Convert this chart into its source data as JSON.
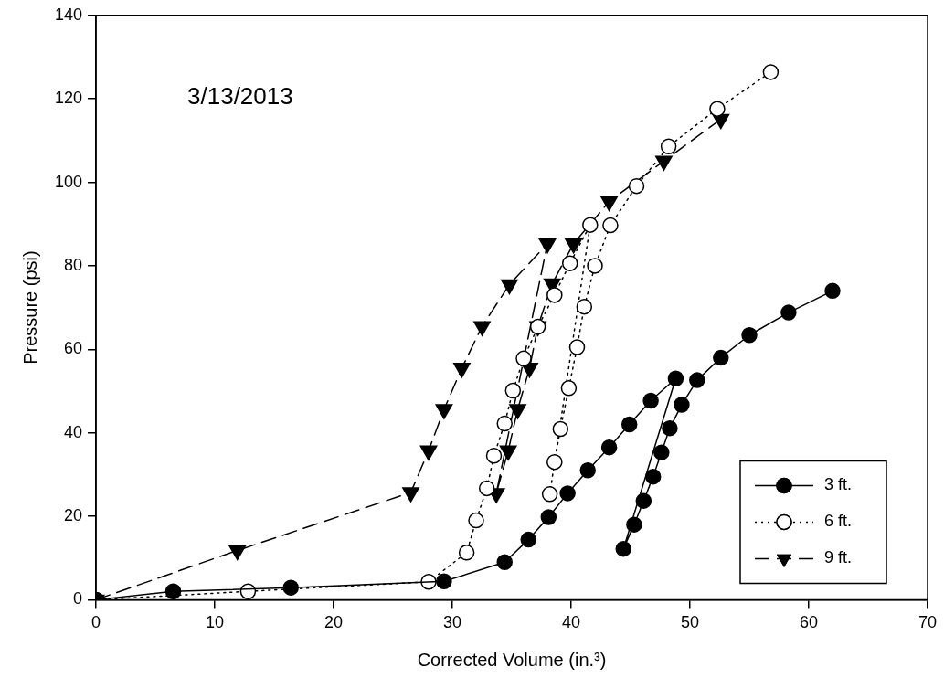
{
  "chart_data": {
    "type": "line",
    "xlabel": "Corrected Volume (in.³)",
    "ylabel": "Pressure (psi)",
    "annotations": [
      "3/13/2013"
    ],
    "xlim": [
      0,
      70
    ],
    "xticks": [
      0,
      10,
      20,
      30,
      40,
      50,
      60,
      70
    ],
    "ylim": [
      0,
      140
    ],
    "yticks": [
      0,
      20,
      40,
      60,
      80,
      100,
      120,
      140
    ],
    "grid": false,
    "legend": "bottom right",
    "series": [
      {
        "name": "3 ft.",
        "color": "#000000",
        "marker": "circle",
        "line_style": "solid",
        "x": [
          0,
          6.5,
          16.4,
          29.3,
          34.4,
          36.4,
          38.1,
          39.7,
          41.4,
          43.2,
          44.9,
          46.7,
          48.8,
          44.4,
          45.3,
          46.1,
          46.9,
          47.6,
          48.3,
          49.3,
          50.6,
          52.6,
          55.0,
          58.3,
          62.0
        ],
        "values": [
          0,
          2.0,
          2.9,
          4.4,
          9.0,
          14.4,
          19.8,
          25.5,
          31.0,
          36.5,
          42.0,
          47.7,
          53.0,
          12.2,
          18.0,
          23.7,
          29.5,
          35.3,
          41.1,
          46.7,
          52.6,
          58.0,
          63.4,
          68.8,
          74.0
        ]
      },
      {
        "name": "6 ft.",
        "color": "#000000",
        "marker": "circle",
        "line_style": "dotted",
        "x": [
          0,
          12.8,
          28.0,
          31.2,
          32.0,
          32.9,
          33.5,
          34.4,
          35.1,
          36.0,
          37.2,
          38.6,
          39.9,
          41.6,
          38.2,
          38.6,
          39.1,
          39.8,
          40.5,
          41.1,
          42.0,
          43.3,
          45.5,
          48.2,
          52.3,
          56.8
        ],
        "values": [
          0,
          2.0,
          4.3,
          11.3,
          19.0,
          26.7,
          34.5,
          42.2,
          50.1,
          57.8,
          65.4,
          73.0,
          80.6,
          89.8,
          25.3,
          33.0,
          40.9,
          50.7,
          60.5,
          70.2,
          80.0,
          89.7,
          99.1,
          108.6,
          117.6,
          126.4
        ]
      },
      {
        "name": "9 ft.",
        "color": "#000000",
        "marker": "triangle",
        "line_style": "dashed",
        "x": [
          0,
          11.9,
          26.5,
          28.0,
          29.3,
          30.8,
          32.5,
          34.8,
          38.0,
          33.7,
          34.7,
          35.5,
          36.5,
          37.2,
          38.4,
          40.2,
          43.2,
          47.8,
          52.6
        ],
        "values": [
          0,
          11.8,
          25.7,
          35.7,
          45.6,
          55.5,
          65.5,
          75.5,
          85.3,
          25.5,
          35.7,
          45.6,
          55.5,
          65.5,
          75.7,
          85.3,
          95.4,
          105.1,
          115.1
        ]
      }
    ]
  }
}
